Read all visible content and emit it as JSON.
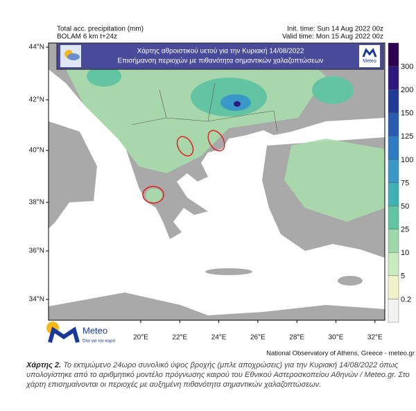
{
  "header": {
    "left": [
      "Total acc. precipitation (mm)",
      "BOLAM 6 km t+24z"
    ],
    "right": [
      "Init. time: Sun 14 Aug 2022 00z",
      "Valid time: Mon 15 Aug 2022 00z"
    ]
  },
  "banner": {
    "title": "Χάρτης αθροιστικού υετού για την Κυριακή 14/08/2022",
    "subtitle": "Επισήμανση περιοχών με πιθανότητα σημαντικών χαλαζοπτώσεων",
    "logo": "Meteo"
  },
  "map": {
    "lat_labels": [
      "44°N",
      "42°N",
      "40°N",
      "38°N",
      "36°N",
      "34°N"
    ],
    "lon_labels": [
      "20°E",
      "22°E",
      "24°E",
      "26°E",
      "28°E",
      "30°E",
      "32°E"
    ]
  },
  "colorbar": {
    "levels": [
      0.2,
      5,
      10,
      25,
      50,
      75,
      100,
      125,
      150,
      200,
      300
    ],
    "colors": [
      "#f4f4ee",
      "#f2f2c8",
      "#c8ecc0",
      "#9ed8a8",
      "#62c4a2",
      "#3fb0b4",
      "#3a98c8",
      "#2f7cc4",
      "#285cb0",
      "#1f3c98",
      "#2c1a7c",
      "#2e0550"
    ]
  },
  "logo": {
    "name": "Meteo",
    "tagline": "Όλα για τον καιρό"
  },
  "credit": "National Observatory of Athens, Greece - meteo.gr",
  "caption": {
    "label": "Χάρτης 2.",
    "text": "Το εκτιμώμενο 24ωρο συνολικό ύψος βροχής (μπλε αποχρώσεις) για την Κυριακή 14/08/2022 όπως υπολογίστηκε από το αριθμητικό μοντέλο πρόγνωσης καιρού του Εθνικού Αστεροσκοπείου Αθηνών / Meteo.gr. Στο χάρτη επισημαίνονται οι περιοχές με αυξημένη πιθανότητα σημαντικών χαλαζοπτώσεων."
  }
}
